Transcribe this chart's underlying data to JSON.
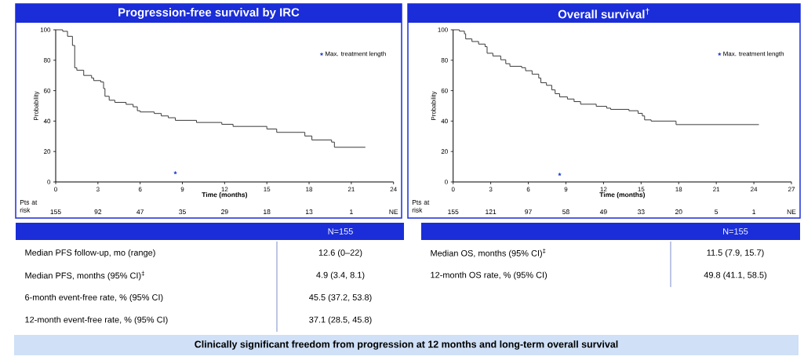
{
  "chart_data": [
    {
      "type": "step",
      "title": "Progression-free survival by IRC",
      "xlabel": "Time (months)",
      "ylabel": "Probability",
      "xlim": [
        0,
        24
      ],
      "ylim": [
        0,
        100
      ],
      "xticks": [
        0,
        3,
        6,
        9,
        12,
        15,
        18,
        21,
        24
      ],
      "yticks": [
        0,
        20,
        40,
        60,
        80,
        100
      ],
      "legend": "top right",
      "series": [
        {
          "color": "#3a3a3a",
          "x": [
            0,
            0.5,
            0.84,
            1.19,
            1.35,
            1.5,
            1.99,
            2.55,
            2.7,
            3.2,
            3.4,
            3.5,
            3.8,
            4.2,
            5.0,
            5.5,
            5.8,
            6.0,
            7.0,
            7.5,
            8.0,
            8.5,
            10.0,
            11.8,
            12.6,
            15.0,
            15.7,
            17.7,
            18.2,
            19.6,
            19.8,
            22.0
          ],
          "values": [
            100,
            99,
            95.7,
            89.7,
            75,
            73.4,
            70,
            68.3,
            66.6,
            65.7,
            61.4,
            56.3,
            53.7,
            52.3,
            51,
            49.4,
            46.8,
            46,
            45,
            43.4,
            42.2,
            40.5,
            39.1,
            37.9,
            36.5,
            34.8,
            32.6,
            30.2,
            27.6,
            26.2,
            22.8,
            22.8
          ]
        },
        {
          "name": "Max. treatment length",
          "type": "scatter",
          "marker": "star",
          "color": "#1f3fd0",
          "x": [
            8.5
          ],
          "values": [
            6
          ]
        }
      ],
      "annotations": [
        "Pts at risk",
        "155",
        "92",
        "47",
        "35",
        "29",
        "18",
        "13",
        "1",
        "NE",
        "N=155",
        "Median PFS follow-up, mo (range)",
        "12.6 (0–22)",
        "Median PFS, months (95% CI)$^{‡}$",
        "4.9 (3.4, 8.1)",
        "6-month event-free rate, % (95% CI)",
        "45.5 (37.2, 53.8)",
        "12-month event-free rate, % (95% CI)",
        "37.1 (28.5, 45.8)",
        "Clinically significant freedom from progression at 12 months and long-term overall survival"
      ]
    },
    {
      "type": "step",
      "title": "Overall survival$^{†}$",
      "xlabel": "Time (months)",
      "ylabel": "Probability",
      "xlim": [
        0,
        27
      ],
      "ylim": [
        0,
        100
      ],
      "xticks": [
        0,
        3,
        6,
        9,
        12,
        15,
        18,
        21,
        24,
        27
      ],
      "yticks": [
        0,
        20,
        40,
        60,
        80,
        100
      ],
      "legend": "top right",
      "series": [
        {
          "color": "#3a3a3a",
          "x": [
            0,
            0.5,
            0.9,
            1.0,
            1.5,
            2.03,
            2.55,
            2.71,
            3.17,
            3.8,
            4.2,
            4.53,
            5.47,
            5.78,
            6.3,
            6.83,
            7.0,
            7.45,
            7.87,
            8.14,
            8.5,
            9.12,
            9.65,
            10.17,
            11.42,
            12.25,
            12.57,
            14.03,
            14.76,
            15.1,
            15.28,
            15.8,
            17.79,
            24.4
          ],
          "values": [
            100,
            99.1,
            97.4,
            94,
            92.3,
            90.6,
            88.9,
            84.6,
            82.8,
            80.3,
            77.7,
            76,
            75.1,
            73.1,
            70.8,
            68.3,
            65.2,
            63.5,
            60.5,
            58,
            55.9,
            54.5,
            52.8,
            51.1,
            49.7,
            48.5,
            47.7,
            46.8,
            45.1,
            43.4,
            40.8,
            40,
            37.7,
            37.7
          ]
        },
        {
          "name": "Max. treatment length",
          "type": "scatter",
          "marker": "star",
          "color": "#1f3fd0",
          "x": [
            8.5
          ],
          "values": [
            5
          ]
        }
      ],
      "annotations": [
        "Pts at risk",
        "155",
        "121",
        "97",
        "58",
        "49",
        "33",
        "20",
        "5",
        "1",
        "NE",
        "N=155",
        "Median OS, months (95% CI)$^{‡}$",
        "11.5 (7.9, 15.7)",
        "12-month OS rate, % (95% CI)",
        "49.8 (41.1, 58.5)"
      ]
    }
  ]
}
